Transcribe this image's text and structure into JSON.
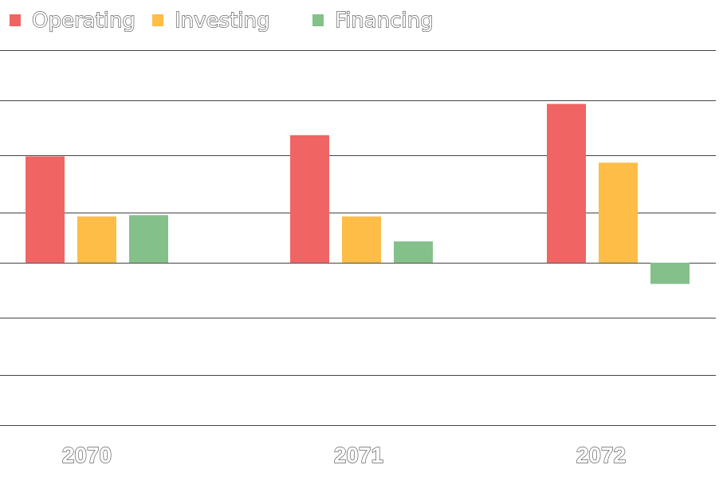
{
  "chart_data": {
    "type": "bar",
    "categories": [
      "2070",
      "2071",
      "2072"
    ],
    "series": [
      {
        "name": "Operating",
        "values": [
          8.5,
          10.2,
          12.7
        ],
        "color": "#f06464"
      },
      {
        "name": "Investing",
        "values": [
          3.7,
          3.7,
          8.0
        ],
        "color": "#fdbd47"
      },
      {
        "name": "Financing",
        "values": [
          3.8,
          1.7,
          -1.7
        ],
        "color": "#84c08a"
      }
    ],
    "ylim": [
      -13,
      17
    ],
    "gridlines": [
      -13,
      -9,
      -4.4,
      0,
      4,
      8.6,
      13,
      17
    ],
    "legend_position": "top-left",
    "grid": true
  }
}
